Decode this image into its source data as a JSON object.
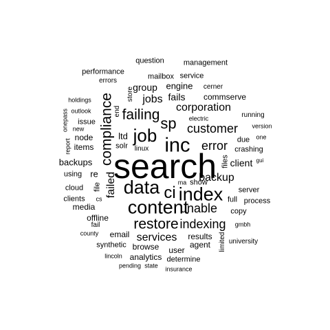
{
  "words": [
    {
      "text": "search"
    },
    {
      "text": "inc"
    },
    {
      "text": "content"
    },
    {
      "text": "data"
    },
    {
      "text": "index"
    },
    {
      "text": "job"
    },
    {
      "text": "ci"
    },
    {
      "text": "sp"
    },
    {
      "text": "restore"
    },
    {
      "text": "compliance"
    },
    {
      "text": "failing"
    },
    {
      "text": "indexing"
    },
    {
      "text": "customer"
    },
    {
      "text": "error"
    },
    {
      "text": "unable"
    },
    {
      "text": "corporation"
    },
    {
      "text": "failed"
    },
    {
      "text": "jobs"
    },
    {
      "text": "backup"
    },
    {
      "text": "services"
    },
    {
      "text": "group"
    },
    {
      "text": "client"
    },
    {
      "text": "fails"
    },
    {
      "text": "engine"
    },
    {
      "text": "backups"
    },
    {
      "text": "ltd"
    },
    {
      "text": "re"
    },
    {
      "text": "commserve"
    },
    {
      "text": "email"
    },
    {
      "text": "browse"
    },
    {
      "text": "media"
    },
    {
      "text": "items"
    },
    {
      "text": "node"
    },
    {
      "text": "offline"
    },
    {
      "text": "results"
    },
    {
      "text": "analytics"
    },
    {
      "text": "user"
    },
    {
      "text": "agent"
    },
    {
      "text": "determine"
    },
    {
      "text": "server"
    },
    {
      "text": "full"
    },
    {
      "text": "process"
    },
    {
      "text": "crashing"
    },
    {
      "text": "solr"
    },
    {
      "text": "mailbox"
    },
    {
      "text": "service"
    },
    {
      "text": "management"
    },
    {
      "text": "question"
    },
    {
      "text": "performance"
    },
    {
      "text": "errors"
    },
    {
      "text": "store"
    },
    {
      "text": "end"
    },
    {
      "text": "cerner"
    },
    {
      "text": "issue"
    },
    {
      "text": "holdings"
    },
    {
      "text": "outlook"
    },
    {
      "text": "onepass"
    },
    {
      "text": "new"
    },
    {
      "text": "report"
    },
    {
      "text": "using"
    },
    {
      "text": "cloud"
    },
    {
      "text": "clients"
    },
    {
      "text": "file"
    },
    {
      "text": "cs"
    },
    {
      "text": "fail"
    },
    {
      "text": "county"
    },
    {
      "text": "synthetic"
    },
    {
      "text": "lincoln"
    },
    {
      "text": "pending"
    },
    {
      "text": "state"
    },
    {
      "text": "insurance"
    },
    {
      "text": "university"
    },
    {
      "text": "limited"
    },
    {
      "text": "gmbh"
    },
    {
      "text": "copy"
    },
    {
      "text": "files"
    },
    {
      "text": "gui"
    },
    {
      "text": "due"
    },
    {
      "text": "one"
    },
    {
      "text": "version"
    },
    {
      "text": "running"
    },
    {
      "text": "electric"
    },
    {
      "text": "linux"
    },
    {
      "text": "show"
    },
    {
      "text": "ma"
    }
  ]
}
